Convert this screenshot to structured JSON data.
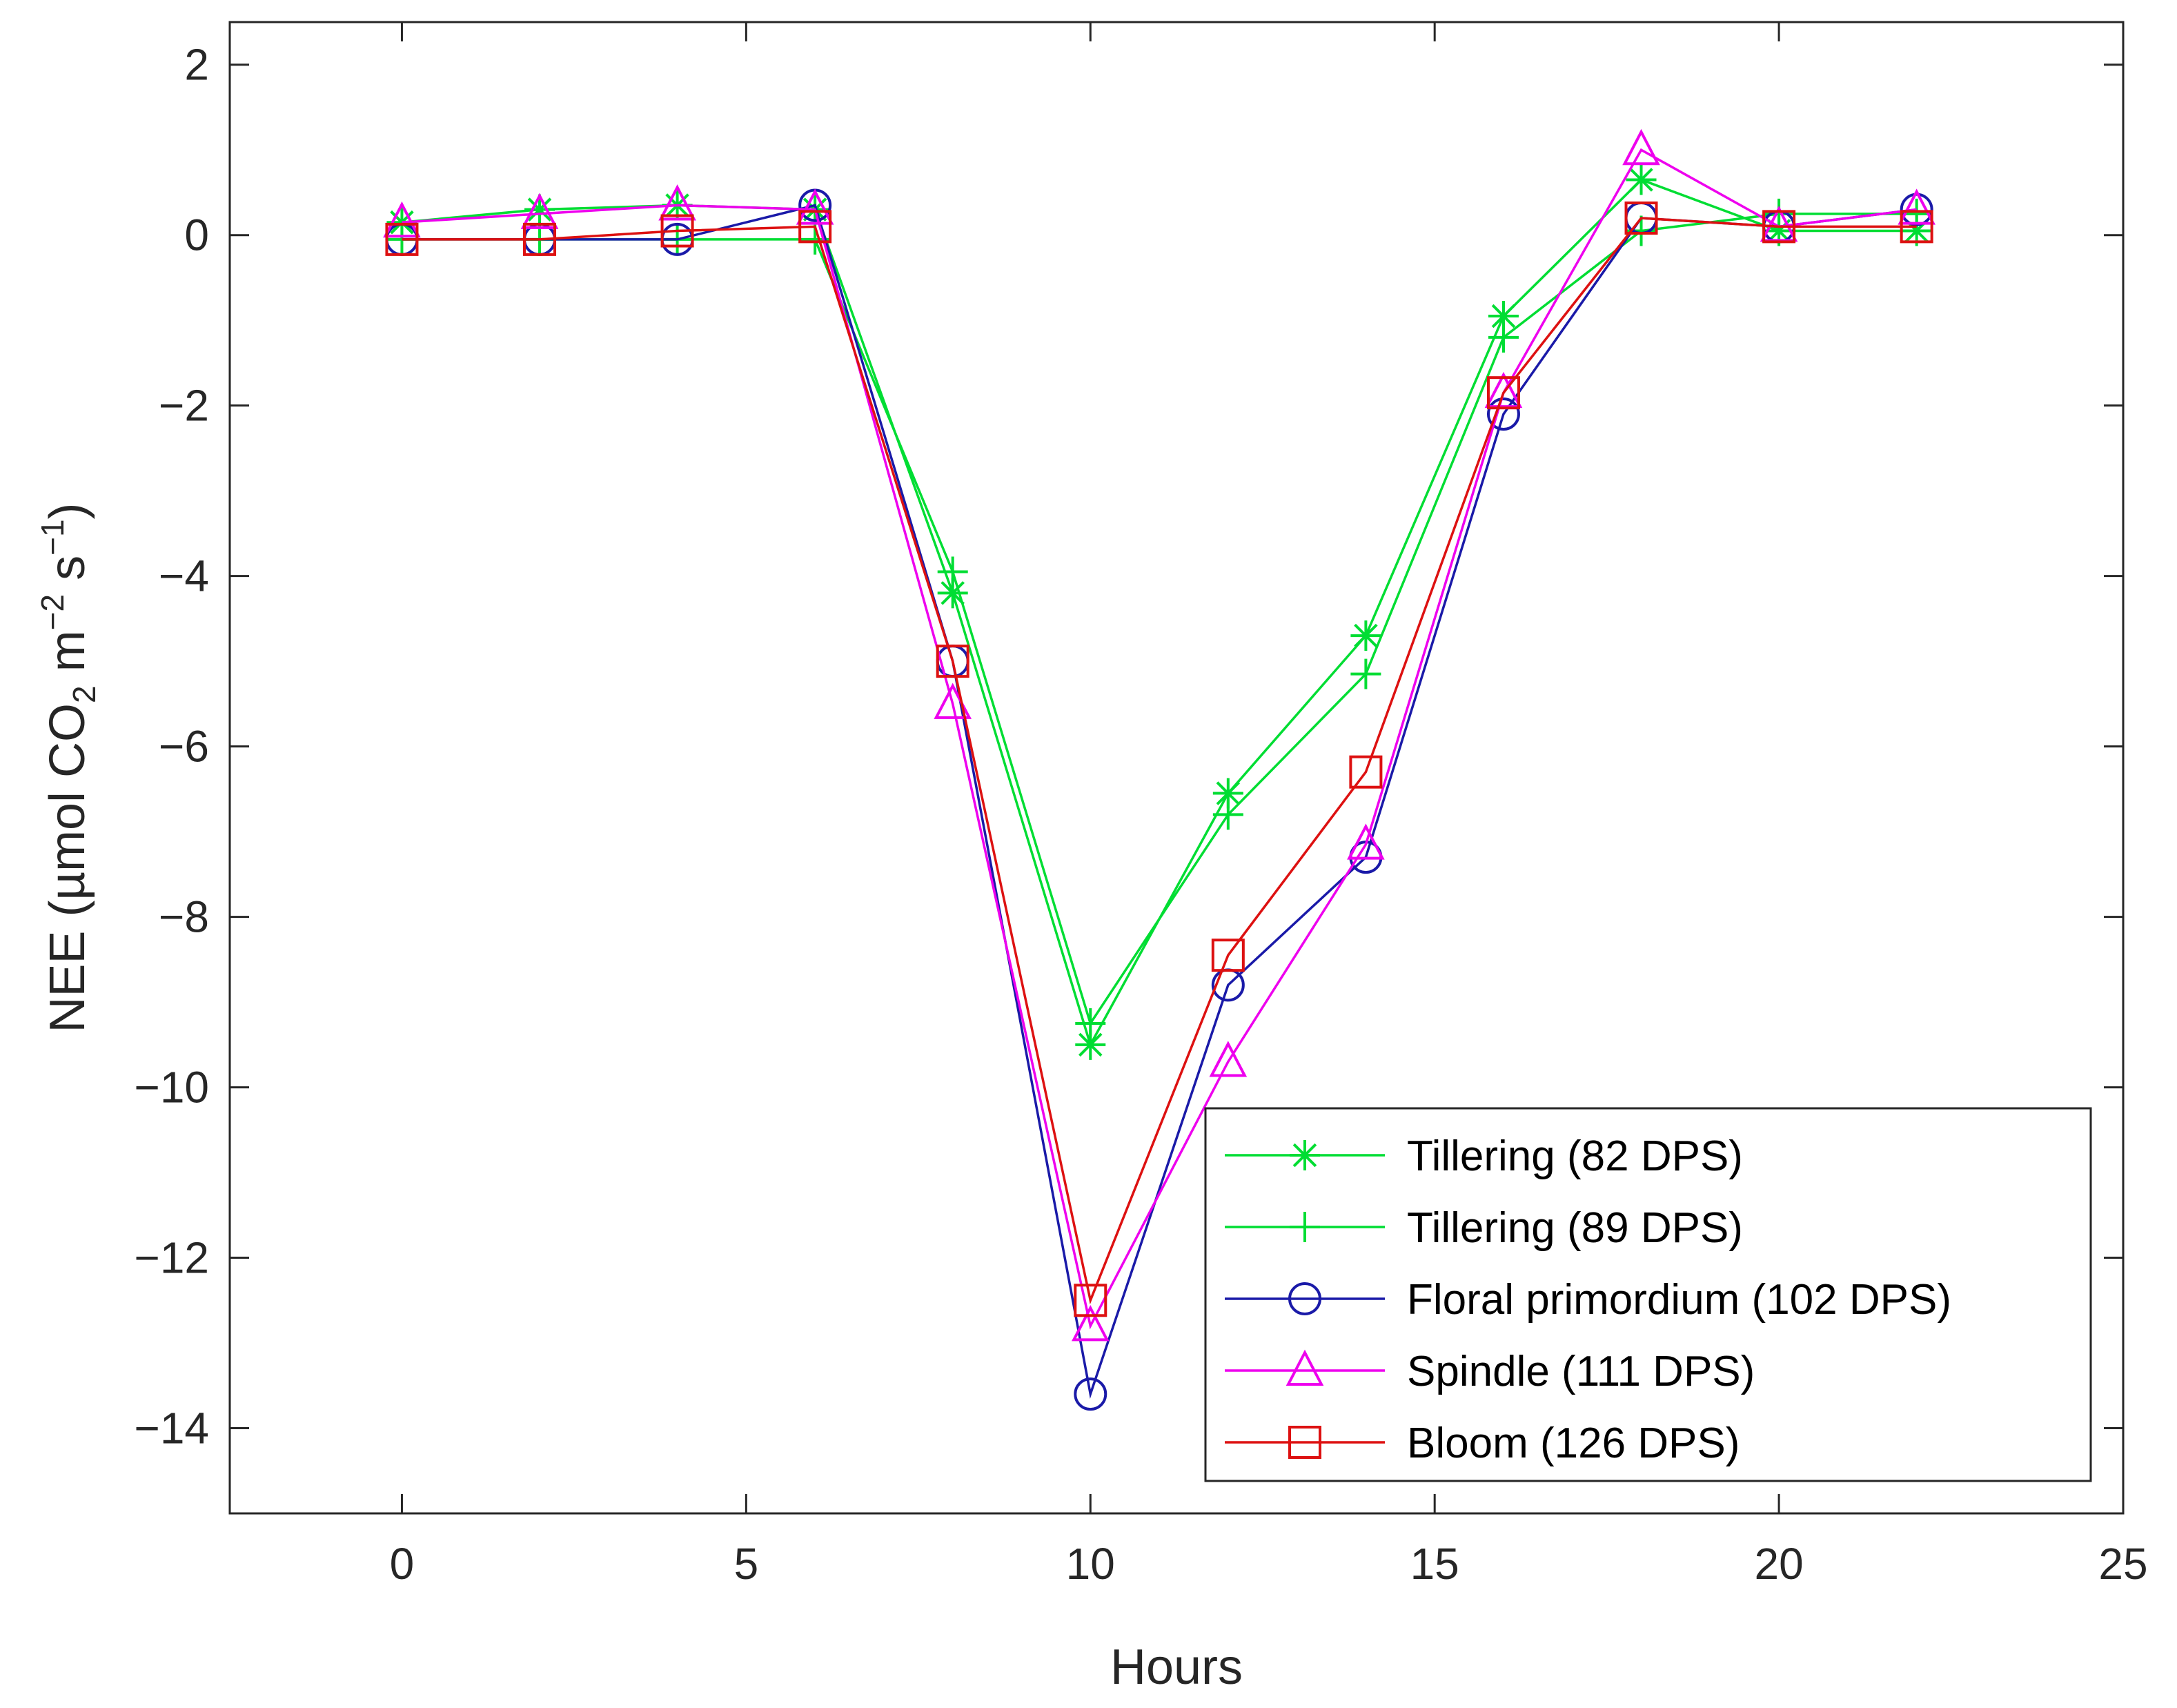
{
  "chart_data": {
    "type": "line",
    "title": "",
    "xlabel": "Hours",
    "ylabel": {
      "prefix": "NEE (",
      "mu": "µ",
      "unit_mol": "mol CO",
      "co2_sub": "2",
      "unit_m": " m",
      "m_exp": "−2",
      "unit_s": " s",
      "s_exp": "−1",
      "suffix": ")"
    },
    "xlim": [
      -2.5,
      25
    ],
    "ylim": [
      -15,
      2.5
    ],
    "xticks": [
      0,
      5,
      10,
      15,
      20,
      25
    ],
    "xtick_labels": [
      "0",
      "5",
      "10",
      "15",
      "20",
      "25"
    ],
    "yticks": [
      2,
      0,
      -2,
      -4,
      -6,
      -8,
      -10,
      -12,
      -14
    ],
    "ytick_labels": [
      "2",
      "0",
      "−2",
      "−4",
      "−6",
      "−8",
      "−10",
      "−12",
      "−14"
    ],
    "legend_position": "bottom-right",
    "series": [
      {
        "name": "Tillering (82 DPS)",
        "color": "#00dd33",
        "marker": "asterisk",
        "x": [
          0,
          2,
          4,
          6,
          8,
          10,
          12,
          14,
          16,
          18,
          20,
          22
        ],
        "y": [
          0.15,
          0.3,
          0.35,
          0.3,
          -4.2,
          -9.5,
          -6.55,
          -4.7,
          -0.95,
          0.65,
          0.05,
          0.05
        ]
      },
      {
        "name": "Tillering (89 DPS)",
        "color": "#00dd33",
        "marker": "plus",
        "x": [
          0,
          2,
          4,
          6,
          8,
          10,
          12,
          14,
          16,
          18,
          20,
          22
        ],
        "y": [
          -0.05,
          -0.05,
          -0.05,
          -0.05,
          -3.95,
          -9.25,
          -6.8,
          -5.15,
          -1.2,
          0.05,
          0.25,
          0.25
        ]
      },
      {
        "name": "Floral primordium (102 DPS)",
        "color": "#1a1aa8",
        "marker": "circle",
        "x": [
          0,
          2,
          4,
          6,
          8,
          10,
          12,
          14,
          16,
          18,
          20,
          22
        ],
        "y": [
          -0.05,
          -0.05,
          -0.05,
          0.35,
          -5.0,
          -13.6,
          -8.8,
          -7.3,
          -2.1,
          0.2,
          0.1,
          0.3
        ]
      },
      {
        "name": "Spindle (111 DPS)",
        "color": "#ee00ee",
        "marker": "triangle",
        "x": [
          0,
          2,
          4,
          6,
          8,
          10,
          12,
          14,
          16,
          18,
          20,
          22
        ],
        "y": [
          0.15,
          0.25,
          0.35,
          0.3,
          -5.5,
          -12.8,
          -9.7,
          -7.15,
          -1.85,
          1.0,
          0.1,
          0.3
        ]
      },
      {
        "name": "Bloom (126 DPS)",
        "color": "#dd1111",
        "marker": "square",
        "x": [
          0,
          2,
          4,
          6,
          8,
          10,
          12,
          14,
          16,
          18,
          20,
          22
        ],
        "y": [
          -0.05,
          -0.05,
          0.05,
          0.1,
          -5.0,
          -12.5,
          -8.45,
          -6.3,
          -1.85,
          0.2,
          0.1,
          0.1
        ]
      }
    ]
  }
}
